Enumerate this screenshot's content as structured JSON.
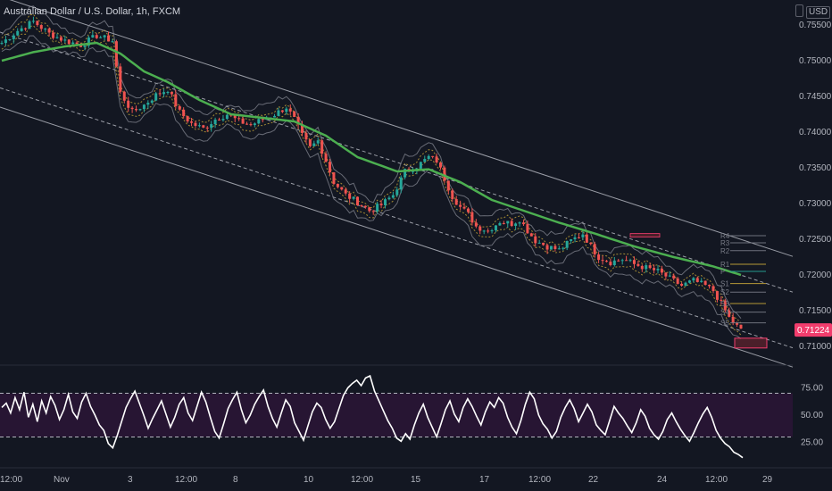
{
  "header": {
    "title": "Australian Dollar / U.S. Dollar, 1h, FXCM",
    "currency": "USD"
  },
  "colors": {
    "background": "#131722",
    "bull": "#26a69a",
    "bear": "#ef5350",
    "ema": "#4caf50",
    "channel": "#b2b5be",
    "band": "#8b8f99",
    "envelope": "#c8a83a",
    "rsi_line": "#ffffff",
    "rsi_zone": "#2a1535",
    "last_price_bg": "#f23d6d",
    "pivot_level": "#5b9cf6"
  },
  "chart_data": [
    {
      "type": "candlestick",
      "ylim": [
        0.7075,
        0.7585
      ],
      "price_ticks": [
        "0.75500",
        "0.75000",
        "0.74500",
        "0.74000",
        "0.73500",
        "0.73000",
        "0.72500",
        "0.72000",
        "0.71500",
        "0.71000"
      ],
      "time_ticks": [
        "12:00",
        "Nov",
        "3",
        "12:00",
        "8",
        "10",
        "12:00",
        "15",
        "17",
        "12:00",
        "22",
        "24",
        "12:00",
        "29"
      ],
      "last_price": "0.71224",
      "pivot_labels": [
        "R4",
        "R3",
        "R2",
        "R1",
        "P",
        "S1",
        "S2",
        "S3",
        "S4",
        "S5"
      ],
      "close_path": [
        [
          0,
          0.7525
        ],
        [
          4,
          0.7542
        ],
        [
          8,
          0.7555
        ],
        [
          12,
          0.7538
        ],
        [
          16,
          0.7528
        ],
        [
          20,
          0.7522
        ],
        [
          24,
          0.7535
        ],
        [
          28,
          0.7528
        ],
        [
          30,
          0.7455
        ],
        [
          33,
          0.7428
        ],
        [
          36,
          0.7438
        ],
        [
          39,
          0.7452
        ],
        [
          42,
          0.746
        ],
        [
          45,
          0.7428
        ],
        [
          48,
          0.7412
        ],
        [
          51,
          0.7405
        ],
        [
          54,
          0.7418
        ],
        [
          57,
          0.7425
        ],
        [
          60,
          0.7415
        ],
        [
          63,
          0.741
        ],
        [
          66,
          0.7418
        ],
        [
          69,
          0.7425
        ],
        [
          72,
          0.7435
        ],
        [
          74,
          0.7418
        ],
        [
          76,
          0.7395
        ],
        [
          78,
          0.7378
        ],
        [
          80,
          0.7388
        ],
        [
          82,
          0.736
        ],
        [
          84,
          0.733
        ],
        [
          87,
          0.7312
        ],
        [
          90,
          0.7302
        ],
        [
          93,
          0.729
        ],
        [
          96,
          0.7298
        ],
        [
          99,
          0.7312
        ],
        [
          102,
          0.7345
        ],
        [
          105,
          0.7352
        ],
        [
          108,
          0.7365
        ],
        [
          110,
          0.736
        ],
        [
          112,
          0.7335
        ],
        [
          114,
          0.731
        ],
        [
          116,
          0.7295
        ],
        [
          118,
          0.7285
        ],
        [
          120,
          0.7268
        ],
        [
          123,
          0.7262
        ],
        [
          126,
          0.7275
        ],
        [
          129,
          0.7272
        ],
        [
          131,
          0.7278
        ],
        [
          133,
          0.7262
        ],
        [
          135,
          0.7248
        ],
        [
          138,
          0.724
        ],
        [
          141,
          0.7235
        ],
        [
          144,
          0.7248
        ],
        [
          147,
          0.7258
        ],
        [
          149,
          0.724
        ],
        [
          151,
          0.7225
        ],
        [
          154,
          0.7218
        ],
        [
          157,
          0.7222
        ],
        [
          160,
          0.7215
        ],
        [
          163,
          0.721
        ],
        [
          166,
          0.7205
        ],
        [
          169,
          0.7195
        ],
        [
          172,
          0.7185
        ],
        [
          175,
          0.7192
        ],
        [
          178,
          0.7185
        ],
        [
          180,
          0.7178
        ],
        [
          182,
          0.716
        ],
        [
          184,
          0.714
        ],
        [
          186,
          0.7128
        ],
        [
          187,
          0.71224
        ]
      ],
      "ema_path": [
        [
          0,
          0.75
        ],
        [
          8,
          0.7512
        ],
        [
          16,
          0.752
        ],
        [
          24,
          0.7525
        ],
        [
          30,
          0.751
        ],
        [
          36,
          0.7485
        ],
        [
          42,
          0.747
        ],
        [
          50,
          0.7445
        ],
        [
          58,
          0.7425
        ],
        [
          66,
          0.742
        ],
        [
          74,
          0.7415
        ],
        [
          82,
          0.7395
        ],
        [
          90,
          0.7365
        ],
        [
          100,
          0.7345
        ],
        [
          108,
          0.7348
        ],
        [
          116,
          0.733
        ],
        [
          124,
          0.7305
        ],
        [
          132,
          0.729
        ],
        [
          140,
          0.7275
        ],
        [
          150,
          0.7258
        ],
        [
          160,
          0.724
        ],
        [
          170,
          0.7225
        ],
        [
          180,
          0.7212
        ],
        [
          187,
          0.72
        ]
      ],
      "rsi_pane": {
        "ticks": [
          "75.00",
          "50.00",
          "25.00"
        ],
        "overbought": 70,
        "oversold": 30,
        "values": [
          57,
          61,
          52,
          66,
          55,
          71,
          48,
          60,
          44,
          63,
          52,
          67,
          59,
          46,
          55,
          69,
          53,
          47,
          62,
          70,
          58,
          50,
          41,
          36,
          24,
          20,
          31,
          44,
          57,
          65,
          72,
          61,
          50,
          38,
          47,
          55,
          63,
          51,
          39,
          48,
          60,
          66,
          52,
          45,
          58,
          71,
          62,
          48,
          35,
          29,
          42,
          56,
          64,
          71,
          55,
          43,
          50,
          60,
          67,
          73,
          58,
          47,
          39,
          52,
          64,
          58,
          43,
          35,
          27,
          40,
          53,
          61,
          57,
          46,
          38,
          44,
          56,
          68,
          75,
          79,
          82,
          77,
          84,
          86,
          72,
          63,
          54,
          45,
          38,
          29,
          26,
          33,
          28,
          41,
          52,
          60,
          48,
          39,
          30,
          42,
          55,
          63,
          51,
          44,
          57,
          65,
          58,
          49,
          41,
          53,
          62,
          57,
          66,
          61,
          48,
          39,
          33,
          45,
          60,
          71,
          65,
          50,
          42,
          37,
          29,
          35,
          48,
          57,
          64,
          56,
          44,
          52,
          60,
          53,
          41,
          36,
          32,
          45,
          58,
          52,
          47,
          40,
          34,
          43,
          55,
          49,
          38,
          32,
          28,
          35,
          46,
          52,
          44,
          37,
          31,
          26,
          34,
          43,
          51,
          57,
          48,
          36,
          29,
          24,
          21,
          16,
          14,
          11
        ]
      }
    }
  ]
}
